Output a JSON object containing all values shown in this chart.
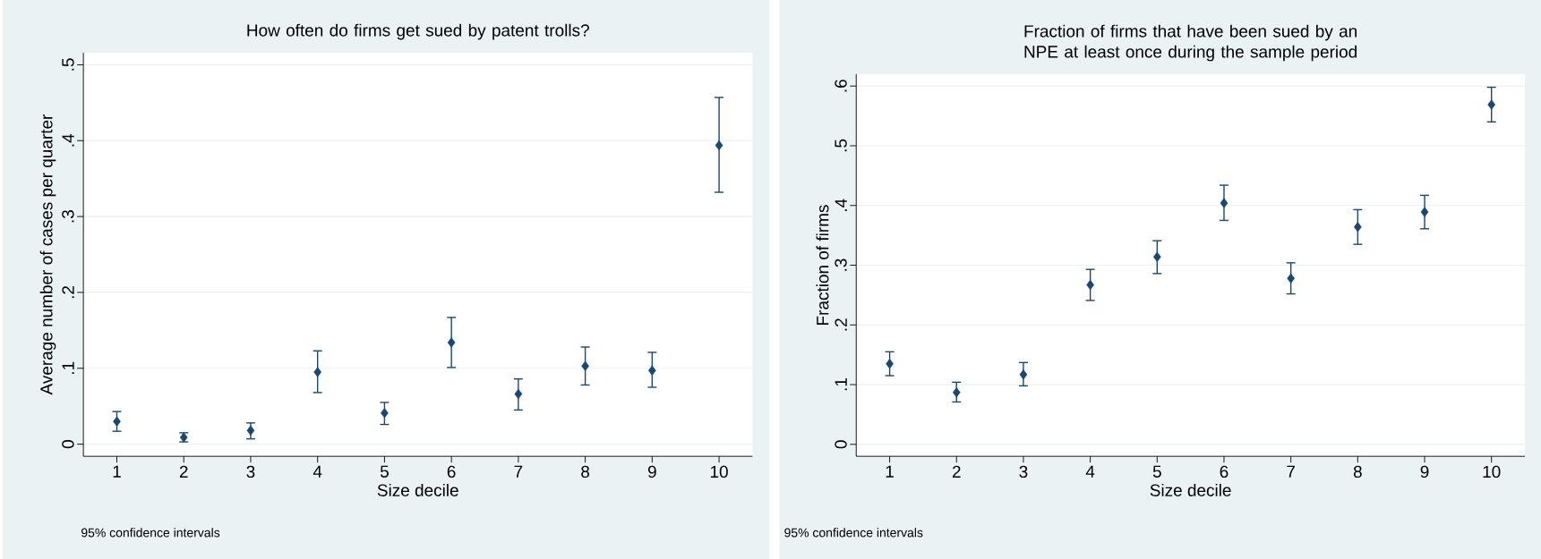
{
  "chart_data": [
    {
      "type": "scatter",
      "title": "How often do firms get sued by patent trolls?",
      "xlabel": "Size decile",
      "ylabel": "Average number of cases per quarter",
      "x": [
        1,
        2,
        3,
        4,
        5,
        6,
        7,
        8,
        9,
        10
      ],
      "values": [
        0.03,
        0.009,
        0.018,
        0.095,
        0.041,
        0.134,
        0.066,
        0.103,
        0.097,
        0.394
      ],
      "errors": [
        [
          0.017,
          0.043
        ],
        [
          0.003,
          0.015
        ],
        [
          0.007,
          0.028
        ],
        [
          0.068,
          0.123
        ],
        [
          0.026,
          0.055
        ],
        [
          0.101,
          0.167
        ],
        [
          0.045,
          0.086
        ],
        [
          0.078,
          0.128
        ],
        [
          0.075,
          0.121
        ],
        [
          0.332,
          0.457
        ]
      ],
      "color": "#1a476f",
      "marker": "diamond",
      "grid": "y",
      "xlim": [
        0.5,
        10.5
      ],
      "xticks": [
        1,
        2,
        3,
        4,
        5,
        6,
        7,
        8,
        9,
        10
      ],
      "ylim": [
        -0.016,
        0.516
      ],
      "yticks": [
        0,
        {
          "value": 0.1,
          "label": ".1"
        },
        {
          "value": 0.2,
          "label": ".2"
        },
        {
          "value": 0.3,
          "label": ".3"
        },
        {
          "value": 0.4,
          "label": ".4"
        },
        {
          "value": 0.5,
          "label": ".5"
        }
      ],
      "annotations": [
        "95% confidence intervals"
      ]
    },
    {
      "type": "scatter",
      "title": "Fraction of firms that have been sued by an NPE at least once during the sample period",
      "xlabel": "Size decile",
      "ylabel": "Fraction of firms",
      "x": [
        1,
        2,
        3,
        4,
        5,
        6,
        7,
        8,
        9,
        10
      ],
      "values": [
        0.135,
        0.087,
        0.117,
        0.267,
        0.314,
        0.404,
        0.278,
        0.364,
        0.389,
        0.569
      ],
      "errors": [
        [
          0.115,
          0.155
        ],
        [
          0.071,
          0.104
        ],
        [
          0.098,
          0.137
        ],
        [
          0.241,
          0.293
        ],
        [
          0.286,
          0.341
        ],
        [
          0.375,
          0.434
        ],
        [
          0.252,
          0.304
        ],
        [
          0.335,
          0.393
        ],
        [
          0.361,
          0.417
        ],
        [
          0.54,
          0.598
        ]
      ],
      "color": "#1a476f",
      "marker": "diamond",
      "grid": "y",
      "xlim": [
        0.5,
        10.5
      ],
      "xticks": [
        1,
        2,
        3,
        4,
        5,
        6,
        7,
        8,
        9,
        10
      ],
      "ylim": [
        -0.02,
        0.62
      ],
      "yticks": [
        0,
        {
          "value": 0.1,
          "label": ".1"
        },
        {
          "value": 0.2,
          "label": ".2"
        },
        {
          "value": 0.3,
          "label": ".3"
        },
        {
          "value": 0.4,
          "label": ".4"
        },
        {
          "value": 0.5,
          "label": ".5"
        },
        {
          "value": 0.6,
          "label": ".6"
        }
      ],
      "annotations": [
        "95% confidence intervals"
      ]
    }
  ]
}
